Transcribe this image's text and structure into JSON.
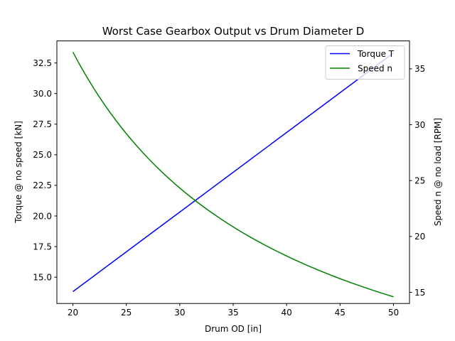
{
  "chart_data": {
    "type": "line",
    "title": "Worst Case Gearbox Output vs Drum Diameter D",
    "xlabel": "Drum OD [in]",
    "ylabel_left": "Torque @ no speed [kN]",
    "ylabel_right": "Speed n @ no load [RPM]",
    "xlim": [
      18.5,
      51.5
    ],
    "ylim_left": [
      12.85,
      34.3
    ],
    "ylim_right": [
      14.0,
      37.5
    ],
    "x_ticks": [
      20,
      25,
      30,
      35,
      40,
      45,
      50
    ],
    "y_left_ticks": [
      15.0,
      17.5,
      20.0,
      22.5,
      25.0,
      27.5,
      30.0,
      32.5
    ],
    "y_right_ticks": [
      15,
      20,
      25,
      30,
      35
    ],
    "x_tick_labels": [
      "20",
      "25",
      "30",
      "35",
      "40",
      "45",
      "50"
    ],
    "y_left_tick_labels": [
      "15.0",
      "17.5",
      "20.0",
      "22.5",
      "25.0",
      "27.5",
      "30.0",
      "32.5"
    ],
    "y_right_tick_labels": [
      "15",
      "20",
      "25",
      "30",
      "35"
    ],
    "grid": false,
    "legend_position": "top-right",
    "series": [
      {
        "name": "Torque T",
        "axis": "left",
        "color": "#0000ff",
        "x": [
          20,
          25,
          30,
          35,
          40,
          45,
          50
        ],
        "y": [
          13.82,
          17.07,
          20.32,
          23.57,
          26.82,
          30.07,
          33.32
        ]
      },
      {
        "name": "Speed n",
        "axis": "right",
        "color": "#008000",
        "x": [
          20,
          22.5,
          25,
          27.5,
          30,
          32.5,
          35,
          37.5,
          40,
          42.5,
          45,
          47.5,
          50
        ],
        "y": [
          36.5,
          32.44,
          29.2,
          26.55,
          24.33,
          22.46,
          20.86,
          19.47,
          18.25,
          17.18,
          16.22,
          15.37,
          14.6
        ]
      }
    ]
  }
}
